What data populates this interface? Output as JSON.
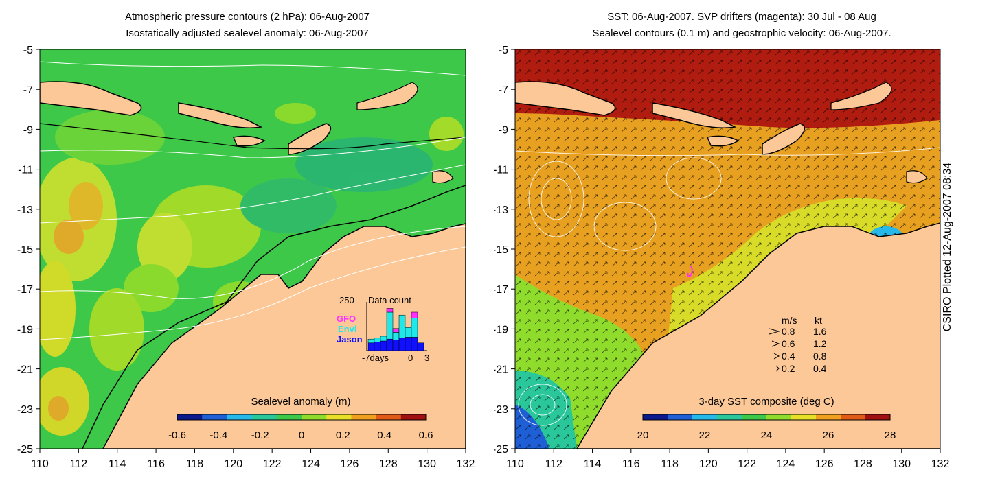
{
  "left_map": {
    "title_line1": "Atmospheric pressure contours (2 hPa): 06-Aug-2007",
    "title_line2": "Isostatically adjusted sealevel anomaly: 06-Aug-2007",
    "lat_ticks": [
      "-5",
      "-7",
      "-9",
      "-11",
      "-13",
      "-15",
      "-17",
      "-19",
      "-21",
      "-23",
      "-25"
    ],
    "lon_ticks": [
      "110",
      "112",
      "114",
      "116",
      "118",
      "120",
      "122",
      "124",
      "126",
      "128",
      "130",
      "132"
    ],
    "colorbar_label": "Sealevel anomaly (m)",
    "colorbar_ticks": [
      "-0.6",
      "-0.4",
      "-0.2",
      "0",
      "0.2",
      "0.4",
      "0.6"
    ],
    "colorbar_colors": [
      "#0a1a8c",
      "#1f5fd6",
      "#26b8e8",
      "#29c79a",
      "#3ec84a",
      "#8fdc2c",
      "#e8e028",
      "#f0a020",
      "#e05a18",
      "#a01010"
    ],
    "inset": {
      "title": "Data count",
      "ymax_label": "250",
      "x_label_start": "-7days",
      "x_label_mid": "0",
      "x_label_end": "3",
      "legend": [
        "GFO",
        "Envi",
        "Jason"
      ],
      "legend_colors": [
        "#ff30ff",
        "#20e8e8",
        "#1010ff"
      ],
      "bars": [
        {
          "jason": 40,
          "envi": 20,
          "gfo": 0
        },
        {
          "jason": 45,
          "envi": 20,
          "gfo": 0
        },
        {
          "jason": 50,
          "envi": 25,
          "gfo": 0
        },
        {
          "jason": 60,
          "envi": 140,
          "gfo": 20
        },
        {
          "jason": 55,
          "envi": 40,
          "gfo": 20
        },
        {
          "jason": 65,
          "envi": 120,
          "gfo": 0
        },
        {
          "jason": 70,
          "envi": 50,
          "gfo": 0
        },
        {
          "jason": 70,
          "envi": 100,
          "gfo": 30
        },
        {
          "jason": 40,
          "envi": 0,
          "gfo": 0
        }
      ]
    }
  },
  "right_map": {
    "title_line1": "SST: 06-Aug-2007. SVP drifters (magenta): 30 Jul - 08 Aug",
    "title_line2": "Sealevel contours (0.1 m) and geostrophic velocity: 06-Aug-2007.",
    "lat_ticks": [
      "-5",
      "-7",
      "-9",
      "-11",
      "-13",
      "-15",
      "-17",
      "-19",
      "-21",
      "-23",
      "-25"
    ],
    "lon_ticks": [
      "110",
      "112",
      "114",
      "116",
      "118",
      "120",
      "122",
      "124",
      "126",
      "128",
      "130",
      "132"
    ],
    "colorbar_label": "3-day SST composite (deg C)",
    "colorbar_ticks": [
      "20",
      "22",
      "24",
      "26",
      "28"
    ],
    "colorbar_colors": [
      "#0a1a8c",
      "#1f5fd6",
      "#26b8e8",
      "#29c79a",
      "#3ec84a",
      "#8fdc2c",
      "#e8e028",
      "#f0a020",
      "#e05a18",
      "#a01010"
    ],
    "velocity_legend": {
      "header_ms": "m/s",
      "header_kt": "kt",
      "rows": [
        {
          "ms": "0.8",
          "kt": "1.6"
        },
        {
          "ms": "0.6",
          "kt": "1.2"
        },
        {
          "ms": "0.4",
          "kt": "0.8"
        },
        {
          "ms": "0.2",
          "kt": "0.4"
        }
      ]
    }
  },
  "credit": "CSIRO Plotted 12-Aug-2007 08:34",
  "colors": {
    "land": "#fcc898",
    "ocean_green": "#3ec84a",
    "sst_warm": "#e8a020",
    "sst_hot": "#a01010"
  }
}
